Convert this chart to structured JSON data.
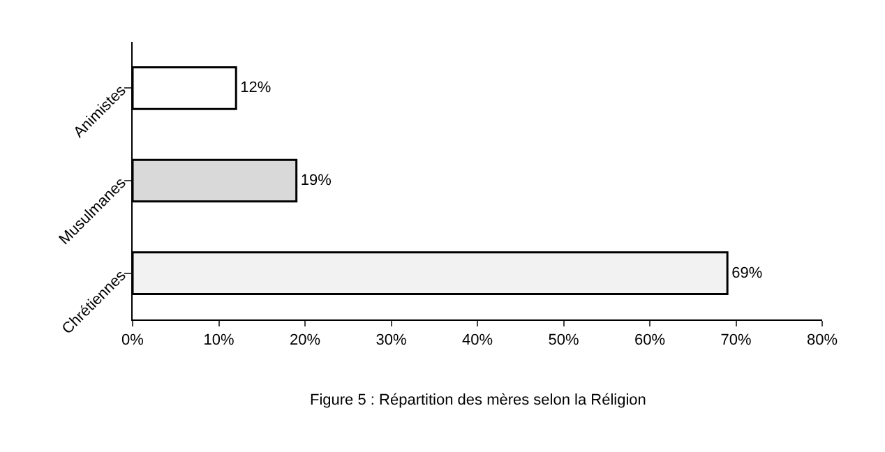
{
  "chart_data": {
    "type": "bar",
    "orientation": "horizontal",
    "categories": [
      "Animistes",
      "Musulmanes",
      "Chrétiennes"
    ],
    "values": [
      12,
      19,
      69
    ],
    "value_labels": [
      "12%",
      "19%",
      "69%"
    ],
    "colors": [
      "#ffffff",
      "#d9d9d9",
      "#f2f2f2"
    ],
    "xlim": [
      0,
      80
    ],
    "xticks": [
      {
        "value": 0,
        "label": "0%"
      },
      {
        "value": 10,
        "label": "10%"
      },
      {
        "value": 20,
        "label": "20%"
      },
      {
        "value": 30,
        "label": "30%"
      },
      {
        "value": 40,
        "label": "40%"
      },
      {
        "value": 50,
        "label": "50%"
      },
      {
        "value": 60,
        "label": "60%"
      },
      {
        "value": 70,
        "label": "70%"
      },
      {
        "value": 80,
        "label": "80%"
      }
    ],
    "legend": false,
    "annotations": [
      "Figure 5 : Répartition des mères selon la Réligion"
    ]
  }
}
